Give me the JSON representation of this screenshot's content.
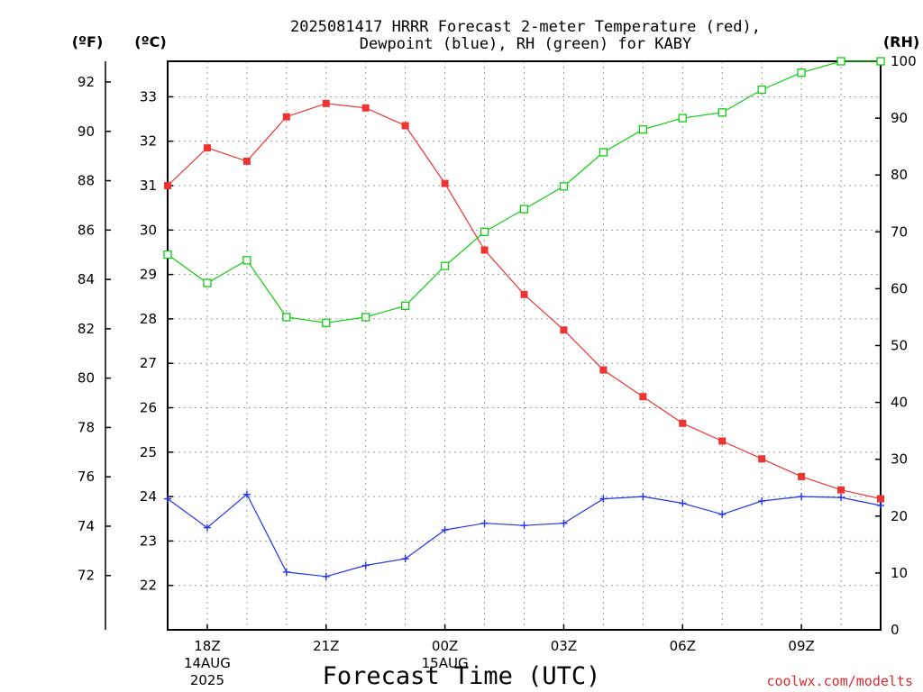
{
  "title": {
    "line1": "2025081417 HRRR Forecast 2-meter Temperature (red),",
    "line2": "Dewpoint (blue), RH (green) for KABY"
  },
  "units": {
    "fahrenheit": "(ºF)",
    "celsius": "(ºC)",
    "rh": "(RH)"
  },
  "credit": "coolwx.com/modelts",
  "colors": {
    "temperature": "#ee3333",
    "dewpoint": "#2233ee",
    "rh": "#11cc11"
  },
  "chart_data": {
    "type": "line",
    "title": "2025081417 HRRR Forecast 2-meter Temperature (red), Dewpoint (blue), RH (green) for KABY",
    "xlabel": "Forecast Time (UTC)",
    "x": [
      "17Z",
      "18Z",
      "19Z",
      "20Z",
      "21Z",
      "22Z",
      "23Z",
      "00Z",
      "01Z",
      "02Z",
      "03Z",
      "04Z",
      "05Z",
      "06Z",
      "07Z",
      "08Z",
      "09Z",
      "10Z",
      "11Z"
    ],
    "x_tick_labels": [
      {
        "label": "18Z",
        "sub1": "14AUG",
        "sub2": "2025"
      },
      {
        "label": "21Z",
        "sub1": "",
        "sub2": ""
      },
      {
        "label": "00Z",
        "sub1": "15AUG",
        "sub2": ""
      },
      {
        "label": "03Z",
        "sub1": "",
        "sub2": ""
      },
      {
        "label": "06Z",
        "sub1": "",
        "sub2": ""
      },
      {
        "label": "09Z",
        "sub1": "",
        "sub2": ""
      }
    ],
    "x_tick_hours": [
      "18Z",
      "21Z",
      "00Z",
      "03Z",
      "06Z",
      "09Z"
    ],
    "axes": {
      "celsius": {
        "ylim": [
          21,
          33.8
        ],
        "ticks": [
          22,
          23,
          24,
          25,
          26,
          27,
          28,
          29,
          30,
          31,
          32,
          33
        ]
      },
      "fahrenheit": {
        "ticks": [
          72,
          74,
          76,
          78,
          80,
          82,
          84,
          86,
          88,
          90,
          92
        ]
      },
      "rh": {
        "ylim": [
          0,
          100
        ],
        "ticks": [
          0,
          10,
          20,
          30,
          40,
          50,
          60,
          70,
          80,
          90,
          100
        ]
      }
    },
    "grid": true,
    "series": [
      {
        "name": "Temperature",
        "axis": "celsius",
        "marker": "filled-square",
        "values": [
          31.0,
          31.85,
          31.55,
          32.55,
          32.85,
          32.75,
          32.35,
          31.05,
          29.55,
          28.55,
          27.75,
          26.85,
          26.25,
          25.65,
          25.25,
          24.85,
          24.45,
          24.15,
          23.95
        ]
      },
      {
        "name": "Dewpoint",
        "axis": "celsius",
        "marker": "plus",
        "values": [
          23.95,
          23.3,
          24.05,
          22.3,
          22.2,
          22.45,
          22.6,
          23.25,
          23.4,
          23.35,
          23.4,
          23.95,
          24.0,
          23.85,
          23.6,
          23.9,
          24.0,
          23.98,
          23.8
        ]
      },
      {
        "name": "RH",
        "axis": "rh",
        "marker": "open-square",
        "values": [
          66,
          61,
          65,
          55,
          54,
          55,
          57,
          64,
          70,
          74,
          78,
          84,
          88,
          90,
          91,
          95,
          98,
          100,
          100
        ]
      }
    ]
  }
}
